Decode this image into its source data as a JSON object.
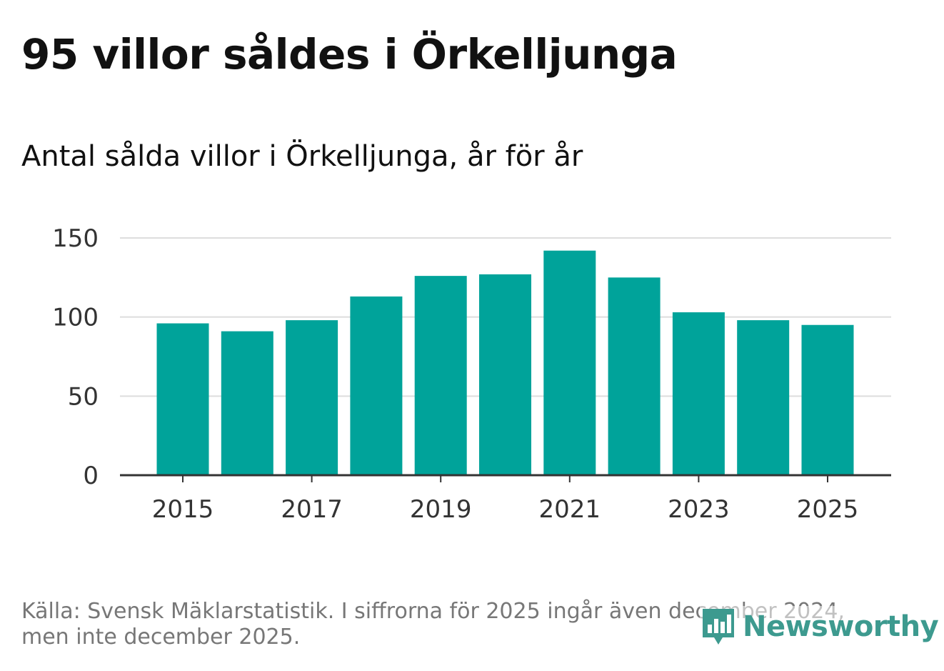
{
  "title": "95 villor såldes i Örkelljunga",
  "subtitle": "Antal sålda villor i Örkelljunga, år för år",
  "footer": {
    "line1": "Källa: Svensk Mäklarstatistik. I siffrorna för 2025 ingår även december 2024,",
    "line2": "men inte december 2025."
  },
  "logo": {
    "text": "Newsworthy",
    "icon": "bar-chart-speech-bubble-icon"
  },
  "colors": {
    "bar": "#00a39a",
    "grid": "#dddddd",
    "axis": "#333333",
    "logo": "#3d9a8f"
  },
  "chart_data": {
    "type": "bar",
    "title": "Antal sålda villor i Örkelljunga, år för år",
    "xlabel": "",
    "ylabel": "",
    "categories": [
      "2015",
      "2016",
      "2017",
      "2018",
      "2019",
      "2020",
      "2021",
      "2022",
      "2023",
      "2024",
      "2025"
    ],
    "values": [
      96,
      91,
      98,
      113,
      126,
      127,
      142,
      125,
      103,
      98,
      95
    ],
    "ylim": [
      0,
      150
    ],
    "yticks": [
      0,
      50,
      100,
      150
    ],
    "xtick_labels": [
      "2015",
      "2017",
      "2019",
      "2021",
      "2023",
      "2025"
    ],
    "grid": true
  }
}
